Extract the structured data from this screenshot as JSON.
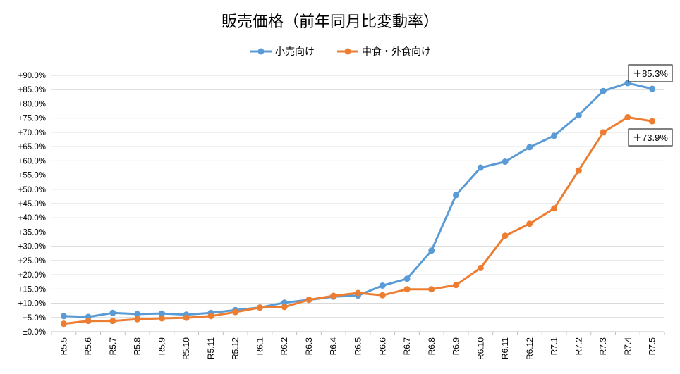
{
  "chart_data": {
    "type": "line",
    "title": "販売価格（前年同月比変動率）",
    "categories": [
      "R5.5",
      "R5.6",
      "R5.7",
      "R5.8",
      "R5.9",
      "R5.10",
      "R5.11",
      "R5.12",
      "R6.1",
      "R6.2",
      "R6.3",
      "R6.4",
      "R6.5",
      "R6.6",
      "R6.7",
      "R6.8",
      "R6.9",
      "R6.10",
      "R6.11",
      "R6.12",
      "R7.1",
      "R7.2",
      "R7.3",
      "R7.4",
      "R7.5"
    ],
    "series": [
      {
        "name": "小売向け",
        "color": "#5B9BD5",
        "values": [
          5.5,
          5.2,
          6.6,
          6.2,
          6.4,
          6.0,
          6.6,
          7.6,
          8.5,
          10.2,
          11.2,
          12.3,
          12.7,
          16.2,
          18.6,
          28.5,
          48.0,
          57.6,
          59.7,
          64.8,
          68.8,
          76.0,
          84.5,
          87.3,
          85.3
        ]
      },
      {
        "name": "中食・外食向け",
        "color": "#ED7D31",
        "values": [
          2.8,
          3.8,
          3.8,
          4.4,
          4.7,
          4.9,
          5.5,
          6.9,
          8.5,
          8.7,
          11.2,
          12.6,
          13.6,
          12.8,
          14.9,
          14.9,
          16.4,
          22.4,
          33.7,
          37.9,
          43.3,
          56.6,
          70.0,
          75.3,
          73.9
        ]
      }
    ],
    "yticks": [
      "±0.0%",
      "+5.0%",
      "+10.0%",
      "+15.0%",
      "+20.0%",
      "+25.0%",
      "+30.0%",
      "+35.0%",
      "+40.0%",
      "+45.0%",
      "+50.0%",
      "+55.0%",
      "+60.0%",
      "+65.0%",
      "+70.0%",
      "+75.0%",
      "+80.0%",
      "+85.0%",
      "+90.0%"
    ],
    "ylim": [
      0,
      90
    ],
    "grid": true,
    "legend_position": "top",
    "annotations": [
      {
        "series": 0,
        "index": 24,
        "text": "＋85.3%"
      },
      {
        "series": 1,
        "index": 24,
        "text": "＋73.9%"
      }
    ]
  }
}
